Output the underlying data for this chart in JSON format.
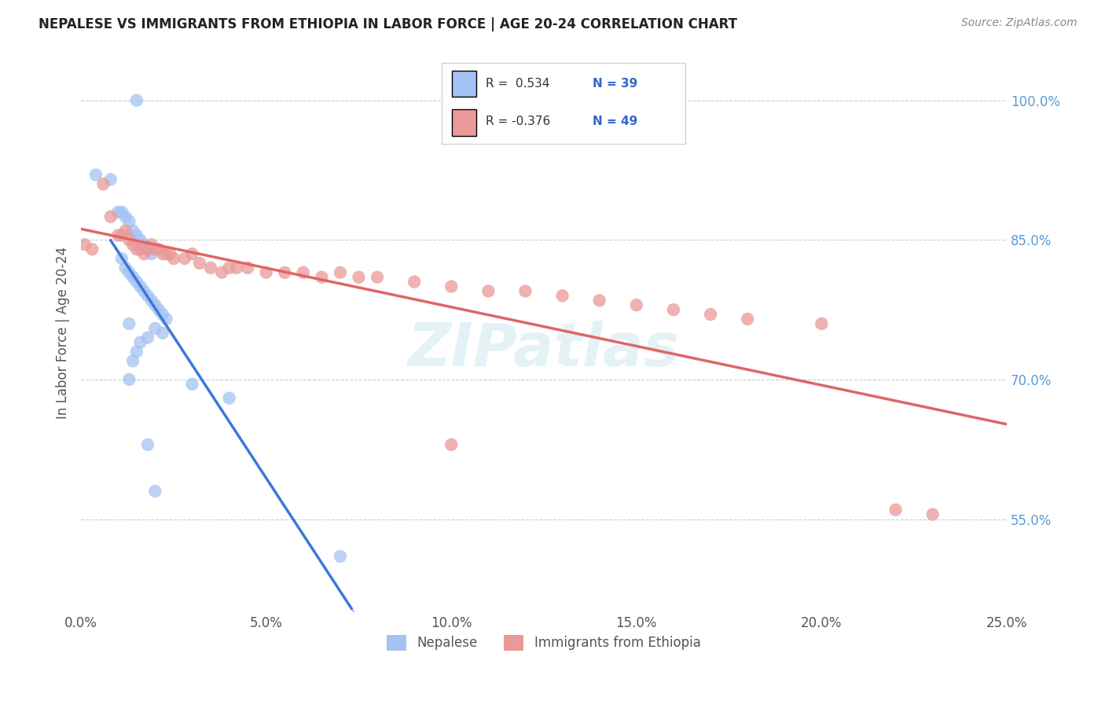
{
  "title": "NEPALESE VS IMMIGRANTS FROM ETHIOPIA IN LABOR FORCE | AGE 20-24 CORRELATION CHART",
  "source": "Source: ZipAtlas.com",
  "ylabel": "In Labor Force | Age 20-24",
  "watermark": "ZIPatlas",
  "xlim": [
    0.0,
    0.25
  ],
  "ylim": [
    0.45,
    1.05
  ],
  "xtick_vals": [
    0.0,
    0.05,
    0.1,
    0.15,
    0.2,
    0.25
  ],
  "xtick_labels": [
    "0.0%",
    "5.0%",
    "10.0%",
    "15.0%",
    "20.0%",
    "25.0%"
  ],
  "ytick_vals": [
    0.55,
    0.7,
    0.85,
    1.0
  ],
  "ytick_labels": [
    "55.0%",
    "70.0%",
    "85.0%",
    "100.0%"
  ],
  "legend_label1": "Nepalese",
  "legend_label2": "Immigrants from Ethiopia",
  "R1": 0.534,
  "N1": 39,
  "R2": -0.376,
  "N2": 49,
  "color_blue": "#a4c2f4",
  "color_pink": "#ea9999",
  "color_blue_line": "#3c78d8",
  "color_pink_line": "#e06666",
  "background_color": "#ffffff",
  "grid_color": "#cccccc",
  "nepalese_x": [
    0.004,
    0.008,
    0.01,
    0.011,
    0.012,
    0.013,
    0.014,
    0.015,
    0.016,
    0.017,
    0.018,
    0.019,
    0.011,
    0.012,
    0.013,
    0.014,
    0.015,
    0.016,
    0.017,
    0.018,
    0.019,
    0.02,
    0.021,
    0.022,
    0.023,
    0.013,
    0.02,
    0.022,
    0.018,
    0.016,
    0.015,
    0.014,
    0.013,
    0.03,
    0.04,
    0.018,
    0.02,
    0.07,
    0.015
  ],
  "nepalese_y": [
    0.92,
    0.915,
    0.88,
    0.88,
    0.875,
    0.87,
    0.86,
    0.855,
    0.85,
    0.845,
    0.84,
    0.835,
    0.83,
    0.82,
    0.815,
    0.81,
    0.805,
    0.8,
    0.795,
    0.79,
    0.785,
    0.78,
    0.775,
    0.77,
    0.765,
    0.76,
    0.755,
    0.75,
    0.745,
    0.74,
    0.73,
    0.72,
    0.7,
    0.695,
    0.68,
    0.63,
    0.58,
    0.51,
    1.0
  ],
  "ethiopia_x": [
    0.001,
    0.003,
    0.006,
    0.008,
    0.01,
    0.011,
    0.012,
    0.013,
    0.014,
    0.015,
    0.016,
    0.017,
    0.018,
    0.019,
    0.02,
    0.021,
    0.022,
    0.023,
    0.024,
    0.025,
    0.028,
    0.03,
    0.032,
    0.035,
    0.038,
    0.04,
    0.042,
    0.045,
    0.05,
    0.055,
    0.06,
    0.065,
    0.07,
    0.075,
    0.08,
    0.09,
    0.1,
    0.11,
    0.12,
    0.13,
    0.14,
    0.15,
    0.16,
    0.17,
    0.18,
    0.2,
    0.1,
    0.22,
    0.23
  ],
  "ethiopia_y": [
    0.845,
    0.84,
    0.91,
    0.875,
    0.855,
    0.855,
    0.86,
    0.85,
    0.845,
    0.84,
    0.84,
    0.835,
    0.84,
    0.845,
    0.84,
    0.84,
    0.835,
    0.835,
    0.835,
    0.83,
    0.83,
    0.835,
    0.825,
    0.82,
    0.815,
    0.82,
    0.82,
    0.82,
    0.815,
    0.815,
    0.815,
    0.81,
    0.815,
    0.81,
    0.81,
    0.805,
    0.8,
    0.795,
    0.795,
    0.79,
    0.785,
    0.78,
    0.775,
    0.77,
    0.765,
    0.76,
    0.63,
    0.56,
    0.555
  ]
}
